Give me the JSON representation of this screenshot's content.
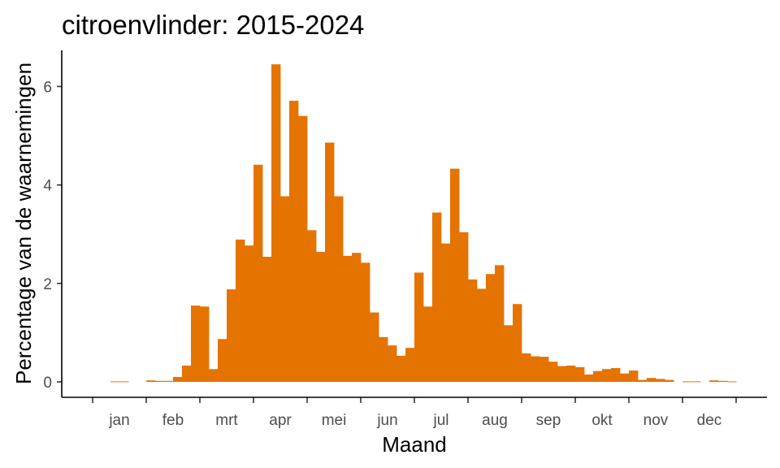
{
  "chart_data": {
    "type": "bar",
    "title": "citroenvlinder: 2015-2024",
    "xlabel": "Maand",
    "ylabel": "Percentage van de waarnemingen",
    "month_labels": [
      "jan",
      "feb",
      "mrt",
      "apr",
      "mei",
      "jun",
      "jul",
      "aug",
      "sep",
      "okt",
      "nov",
      "dec"
    ],
    "y_ticks": [
      0,
      2,
      4,
      6
    ],
    "ylim": [
      0,
      6.7
    ],
    "weeks": 72,
    "values": [
      0,
      0,
      0.01,
      0.01,
      0,
      0,
      0.03,
      0.02,
      0.02,
      0.1,
      0.33,
      1.55,
      1.53,
      0.26,
      0.87,
      1.88,
      2.89,
      2.77,
      4.41,
      2.54,
      6.45,
      3.77,
      5.71,
      5.4,
      3.08,
      2.64,
      4.86,
      3.77,
      2.56,
      2.62,
      2.42,
      1.41,
      0.91,
      0.74,
      0.53,
      0.69,
      2.22,
      1.53,
      3.44,
      2.81,
      4.33,
      3.04,
      2.08,
      1.89,
      2.19,
      2.37,
      1.15,
      1.58,
      0.58,
      0.52,
      0.51,
      0.41,
      0.32,
      0.33,
      0.3,
      0.15,
      0.22,
      0.26,
      0.28,
      0.17,
      0.23,
      0.04,
      0.08,
      0.06,
      0.04,
      0,
      0.01,
      0.01,
      0,
      0.03,
      0.02,
      0.01
    ],
    "bar_color": "#E57300",
    "grid": false,
    "legend": "none"
  }
}
